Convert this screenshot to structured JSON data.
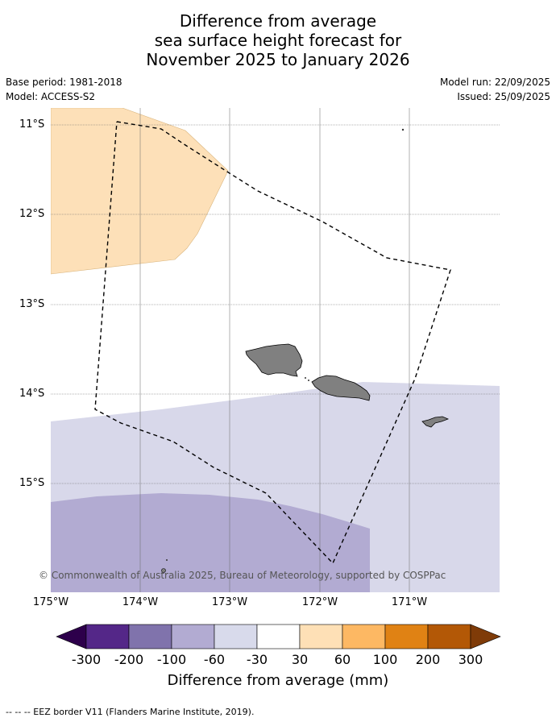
{
  "title": {
    "line1": "Difference from average",
    "line2": "sea surface height forecast for",
    "line3": "November 2025 to January 2026"
  },
  "info": {
    "base_period": "Base period: 1981-2018",
    "model": "Model: ACCESS-S2",
    "model_run": "Model run: 22/09/2025",
    "issued": "Issued: 25/09/2025"
  },
  "map": {
    "latitude_labels": [
      "11°S",
      "12°S",
      "13°S",
      "14°S",
      "15°S"
    ],
    "longitude_labels": [
      "175°W",
      "174°W",
      "173°W",
      "172°W",
      "171°W"
    ],
    "copyright": "© Commonwealth of Australia 2025, Bureau of Meteorology, supported by COSPPac",
    "colors": {
      "positive_30_60": "#fde0b8",
      "negative_60_30": "#d8d8ea",
      "negative_100_60": "#b2abd2",
      "land": "#808080"
    }
  },
  "colorbar": {
    "title": "Difference from average (mm)",
    "ticks": [
      "-300",
      "-200",
      "-100",
      "-60",
      "-30",
      "30",
      "60",
      "100",
      "200",
      "300"
    ],
    "colors": [
      "#2d004b",
      "#542788",
      "#8073ac",
      "#b2abd2",
      "#d8daeb",
      "#ffffff",
      "#fee0b6",
      "#fdb863",
      "#e08214",
      "#b35806",
      "#7f3b08"
    ]
  },
  "footnote": "--  --  -- EEZ border V11 (Flanders Marine Institute, 2019)."
}
